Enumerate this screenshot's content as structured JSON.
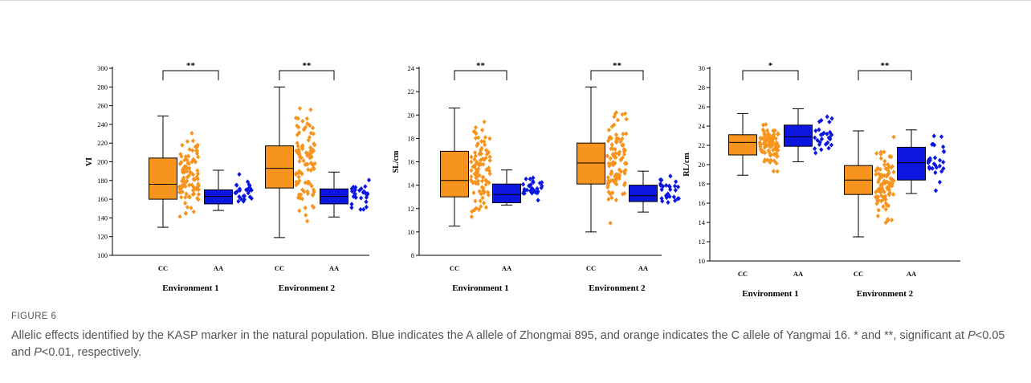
{
  "figure": {
    "label": "FIGURE 6",
    "caption_a": "Allelic effects identified by the KASP marker in the natural population. Blue indicates the A allele of Zhongmai 895, and orange indicates the C allele of Yangmai 16. * and **, significant at ",
    "caption_p": "P",
    "caption_b": "<0.05 and ",
    "caption_c": "<0.01, respectively."
  },
  "colors": {
    "CC": "#f7941d",
    "AA": "#0b16e0",
    "axis": "#000000"
  },
  "chart_data": [
    {
      "type": "box",
      "ylabel": "VI",
      "ylim": [
        100,
        300
      ],
      "yticks": [
        100,
        120,
        140,
        160,
        180,
        200,
        220,
        240,
        260,
        280,
        300
      ],
      "environments": [
        "Environment 1",
        "Environment 2"
      ],
      "genotypes": [
        "CC",
        "AA"
      ],
      "groups": [
        {
          "env": "Environment 1",
          "genotype": "CC",
          "min": 130,
          "q1": 160,
          "median": 176,
          "q3": 204,
          "max": 249
        },
        {
          "env": "Environment 1",
          "genotype": "AA",
          "min": 148,
          "q1": 155,
          "median": 163,
          "q3": 170,
          "max": 191
        },
        {
          "env": "Environment 2",
          "genotype": "CC",
          "min": 119,
          "q1": 172,
          "median": 193,
          "q3": 217,
          "max": 280
        },
        {
          "env": "Environment 2",
          "genotype": "AA",
          "min": 141,
          "q1": 155,
          "median": 163,
          "q3": 171,
          "max": 189
        }
      ],
      "significance": [
        "**",
        "**"
      ]
    },
    {
      "type": "box",
      "ylabel": "SL/cm",
      "ylim": [
        8,
        24
      ],
      "yticks": [
        8,
        10,
        12,
        14,
        16,
        18,
        20,
        22,
        24
      ],
      "environments": [
        "Environment 1",
        "Environment 2"
      ],
      "genotypes": [
        "CC",
        "AA"
      ],
      "groups": [
        {
          "env": "Environment 1",
          "genotype": "CC",
          "min": 10.5,
          "q1": 13.0,
          "median": 14.4,
          "q3": 16.9,
          "max": 20.6
        },
        {
          "env": "Environment 1",
          "genotype": "AA",
          "min": 12.3,
          "q1": 12.5,
          "median": 13.2,
          "q3": 14.1,
          "max": 15.3
        },
        {
          "env": "Environment 2",
          "genotype": "CC",
          "min": 10.0,
          "q1": 14.1,
          "median": 15.9,
          "q3": 17.6,
          "max": 22.4
        },
        {
          "env": "Environment 2",
          "genotype": "AA",
          "min": 11.7,
          "q1": 12.6,
          "median": 13.1,
          "q3": 14.0,
          "max": 15.2
        }
      ],
      "significance": [
        "**",
        "**"
      ]
    },
    {
      "type": "box",
      "ylabel": "RL/cm",
      "ylim": [
        10,
        30
      ],
      "yticks": [
        10,
        12,
        14,
        16,
        18,
        20,
        22,
        24,
        26,
        28,
        30
      ],
      "environments": [
        "Environment 1",
        "Environment 2"
      ],
      "genotypes": [
        "CC",
        "AA"
      ],
      "groups": [
        {
          "env": "Environment 1",
          "genotype": "CC",
          "min": 18.9,
          "q1": 21.0,
          "median": 22.3,
          "q3": 23.1,
          "max": 25.3
        },
        {
          "env": "Environment 1",
          "genotype": "AA",
          "min": 20.3,
          "q1": 21.9,
          "median": 22.9,
          "q3": 24.1,
          "max": 25.8
        },
        {
          "env": "Environment 2",
          "genotype": "CC",
          "min": 12.5,
          "q1": 16.9,
          "median": 18.4,
          "q3": 19.9,
          "max": 23.5
        },
        {
          "env": "Environment 2",
          "genotype": "AA",
          "min": 17.0,
          "q1": 18.4,
          "median": 20.2,
          "q3": 21.8,
          "max": 23.6
        }
      ],
      "significance": [
        "*",
        "**"
      ]
    }
  ]
}
